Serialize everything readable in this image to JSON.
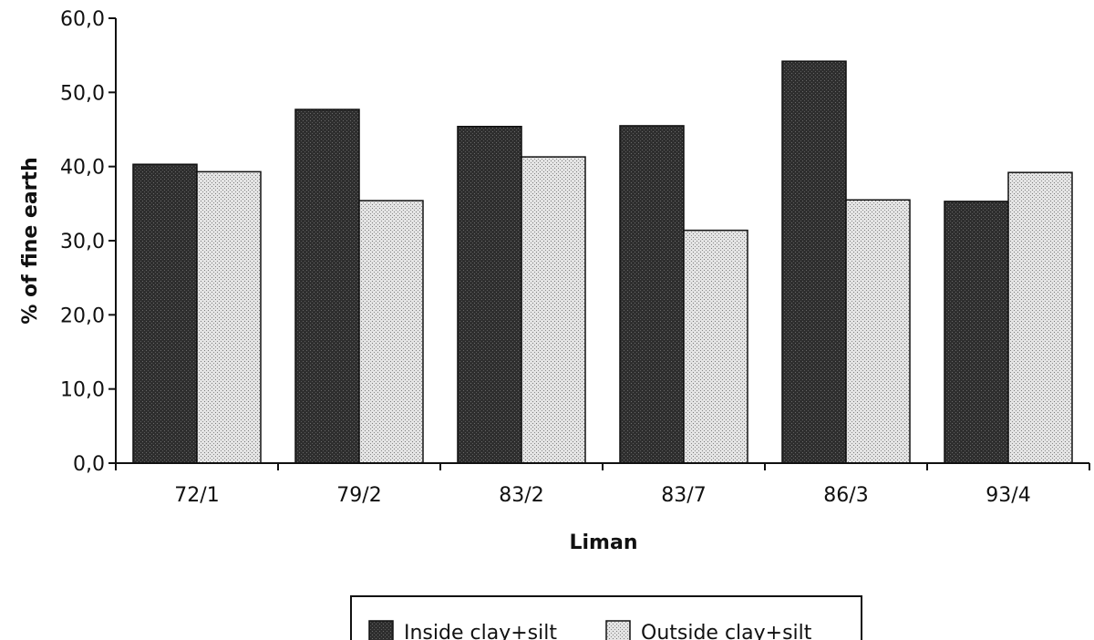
{
  "chart_data": {
    "type": "bar",
    "categories": [
      "72/1",
      "79/2",
      "83/2",
      "83/7",
      "86/3",
      "93/4"
    ],
    "series": [
      {
        "name": "Inside clay+silt",
        "values": [
          40.3,
          47.7,
          45.4,
          45.5,
          54.2,
          35.3
        ],
        "color": "#3a3a3a"
      },
      {
        "name": "Outside clay+silt",
        "values": [
          39.3,
          35.4,
          41.3,
          31.4,
          35.5,
          39.2
        ],
        "color": "#cfcfcf"
      }
    ],
    "xlabel": "Liman",
    "ylabel": "% of fine earth",
    "ylim": [
      0,
      60
    ],
    "yticks": [
      "0,0",
      "10,0",
      "20,0",
      "30,0",
      "40,0",
      "50,0",
      "60,0"
    ],
    "grid": false,
    "legend_position": "bottom"
  }
}
